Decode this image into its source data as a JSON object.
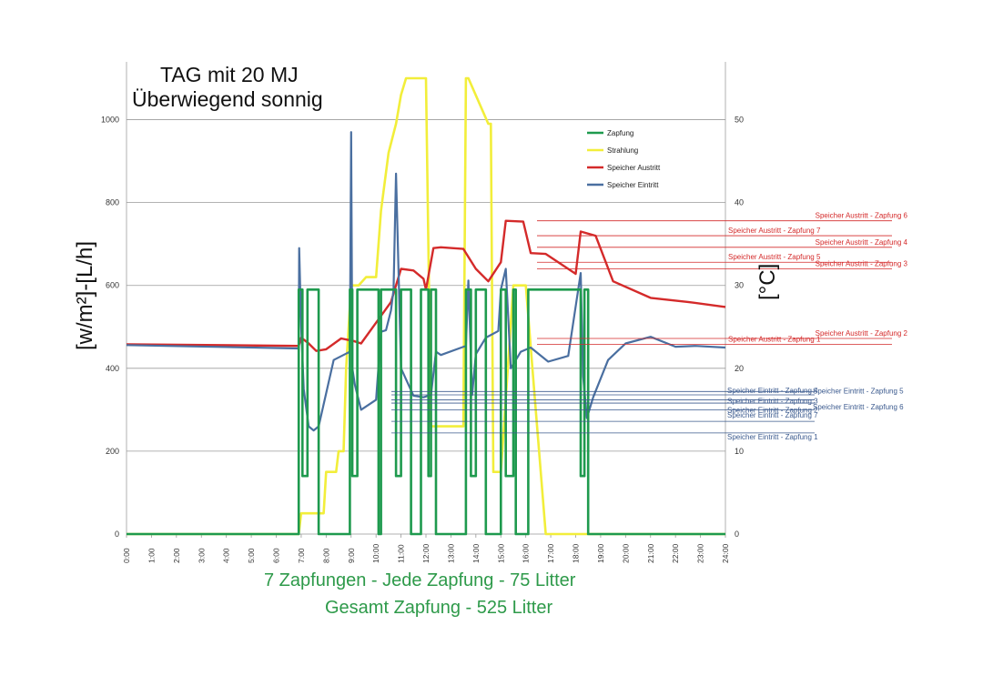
{
  "title_line1": "TAG mit 20 MJ",
  "title_line2": "Überwiegend sonnig",
  "caption_line1": "7 Zapfungen - Jede Zapfung - 75 Litter",
  "caption_line2": "Gesamt Zapfung - 525 Litter",
  "chart_data": {
    "type": "line",
    "ylabel": "[w/m²]-[L/h]",
    "y2label": "[°C]",
    "ylim": [
      0,
      1100
    ],
    "y2lim": [
      0,
      55
    ],
    "xlim": [
      0,
      24
    ],
    "x_ticks": [
      "0:00",
      "1:00",
      "2:00",
      "3:00",
      "4:00",
      "5:00",
      "6:00",
      "7:00",
      "8:00",
      "9:00",
      "10:00",
      "11:00",
      "12:00",
      "13:00",
      "14:00",
      "15:00",
      "16:00",
      "17:00",
      "18:00",
      "19:00",
      "20:00",
      "21:00",
      "22:00",
      "23:00",
      "24:00"
    ],
    "y_ticks": [
      0,
      200,
      400,
      600,
      800,
      1000
    ],
    "y2_ticks": [
      0,
      10,
      20,
      30,
      40,
      50
    ],
    "grid": true,
    "legend_position": "top-right",
    "colors": {
      "zapfung": "#1e9a4e",
      "strahlung": "#f2ee3a",
      "austritt": "#d42a2a",
      "eintritt": "#4a6fa0"
    },
    "series": [
      {
        "name": "Zapfung",
        "axis": "left",
        "x": [
          0,
          6.9,
          6.9,
          7.05,
          7.05,
          7.25,
          7.25,
          7.7,
          7.7,
          8.95,
          8.95,
          9.05,
          9.05,
          9.25,
          9.25,
          10.1,
          10.1,
          10.2,
          10.2,
          10.8,
          10.8,
          11.0,
          11.0,
          11.4,
          11.4,
          11.8,
          11.8,
          12.1,
          12.1,
          12.2,
          12.2,
          12.4,
          12.4,
          13.6,
          13.6,
          13.8,
          13.8,
          14.0,
          14.0,
          14.4,
          14.4,
          15.0,
          15.0,
          15.2,
          15.2,
          15.5,
          15.5,
          15.6,
          15.6,
          16.1,
          16.1,
          18.2,
          18.2,
          18.35,
          18.35,
          18.5,
          18.5,
          18.5,
          18.5,
          24
        ],
        "y": [
          0,
          0,
          590,
          590,
          140,
          140,
          590,
          590,
          0,
          0,
          590,
          590,
          140,
          140,
          590,
          590,
          0,
          0,
          590,
          590,
          140,
          140,
          590,
          590,
          0,
          0,
          590,
          590,
          140,
          140,
          590,
          590,
          0,
          0,
          590,
          590,
          140,
          140,
          590,
          590,
          0,
          0,
          590,
          590,
          140,
          140,
          590,
          590,
          0,
          0,
          590,
          590,
          140,
          140,
          590,
          590,
          0,
          0,
          0,
          0
        ]
      },
      {
        "name": "Strahlung",
        "axis": "left",
        "x": [
          0,
          6.9,
          7.0,
          7.9,
          8.0,
          8.4,
          8.5,
          8.7,
          8.8,
          9.0,
          9.3,
          9.6,
          10.0,
          10.2,
          10.5,
          10.8,
          11.0,
          11.2,
          12.0,
          12.2,
          13.4,
          13.5,
          13.6,
          13.7,
          14.5,
          14.6,
          14.7,
          15.0,
          15.5,
          15.7,
          16.0,
          16.4,
          16.8,
          24
        ],
        "y": [
          0,
          0,
          50,
          50,
          150,
          150,
          200,
          200,
          400,
          600,
          600,
          620,
          620,
          780,
          920,
          990,
          1060,
          1100,
          1100,
          260,
          260,
          260,
          1100,
          1100,
          990,
          990,
          150,
          150,
          600,
          600,
          600,
          300,
          0,
          0
        ]
      },
      {
        "name": "Speicher Austritt",
        "axis": "right",
        "x": [
          0,
          6.9,
          7.0,
          7.3,
          7.6,
          8.0,
          8.6,
          9.1,
          9.4,
          10.0,
          10.6,
          11.0,
          11.5,
          11.9,
          12.0,
          12.3,
          12.6,
          13.5,
          14.0,
          14.5,
          15.0,
          15.2,
          15.9,
          16.2,
          16.8,
          18.0,
          18.2,
          18.8,
          19.5,
          21.0,
          22.5,
          24
        ],
        "y": [
          22.9,
          22.7,
          23.7,
          23.0,
          22.1,
          22.3,
          23.6,
          23.3,
          23.0,
          25.5,
          28.0,
          32.0,
          31.8,
          30.8,
          29.5,
          34.5,
          34.6,
          34.4,
          32.0,
          30.5,
          32.8,
          37.8,
          37.7,
          33.9,
          33.8,
          31.4,
          36.5,
          36.0,
          30.5,
          28.5,
          28.0,
          27.4
        ]
      },
      {
        "name": "Speicher Eintritt",
        "axis": "right",
        "x": [
          0,
          6.9,
          6.92,
          7.0,
          7.1,
          7.3,
          7.5,
          7.7,
          8.3,
          8.95,
          9.0,
          9.05,
          9.15,
          9.4,
          10.0,
          10.2,
          10.4,
          10.6,
          10.7,
          10.8,
          11.0,
          11.5,
          11.9,
          12.2,
          12.4,
          12.6,
          13.6,
          13.7,
          13.85,
          14.0,
          14.4,
          14.9,
          15.0,
          15.2,
          15.4,
          15.8,
          16.2,
          16.9,
          17.7,
          18.2,
          18.3,
          18.45,
          18.7,
          19.3,
          20.0,
          21.0,
          22.0,
          22.8,
          24
        ],
        "y": [
          22.8,
          22.4,
          34.5,
          25.0,
          17.5,
          13.0,
          12.5,
          13.0,
          21.0,
          22.0,
          48.5,
          20.0,
          18.0,
          15.0,
          16.2,
          24.4,
          24.6,
          27.0,
          29.5,
          43.5,
          20.0,
          16.7,
          16.5,
          16.8,
          22.0,
          21.6,
          22.7,
          30.6,
          16.8,
          21.7,
          23.7,
          24.5,
          29.5,
          32.0,
          20.0,
          22.0,
          22.5,
          20.8,
          21.5,
          31.5,
          19.0,
          14.0,
          16.5,
          21.0,
          23.0,
          23.8,
          22.6,
          22.7,
          22.5
        ]
      }
    ],
    "annotations_austritt": [
      {
        "label": "Speicher Austritt - Zapfung 6",
        "value": 37.8,
        "align": "right"
      },
      {
        "label": "Speicher Austritt - Zapfung 7",
        "value": 36.0,
        "align": "left"
      },
      {
        "label": "Speicher Austritt - Zapfung 4",
        "value": 34.6,
        "align": "right"
      },
      {
        "label": "Speicher Austritt - Zapfung 5",
        "value": 32.8,
        "align": "left"
      },
      {
        "label": "Speicher Austritt - Zapfung 3",
        "value": 32.0,
        "align": "right"
      },
      {
        "label": "Speicher Austritt - Zapfung 2",
        "value": 23.6,
        "align": "right"
      },
      {
        "label": "Speicher Austritt - Zapfung 1",
        "value": 22.9,
        "align": "left"
      }
    ],
    "annotations_eintritt": [
      {
        "label": "Speicher Eintritt - Zapfung 4",
        "value": 16.8
      },
      {
        "label": "Speicher Eintritt - Zapfung 5",
        "value": 17.2
      },
      {
        "label": "Speicher Eintritt - Zapfung 3",
        "value": 16.2
      },
      {
        "label": "Speicher Eintritt - Zapfung 6",
        "value": 15.8
      },
      {
        "label": "Speicher Eintritt - Zapfung 2",
        "value": 15.0
      },
      {
        "label": "Speicher Eintritt - Zapfung 7",
        "value": 13.6
      },
      {
        "label": "Speicher Eintritt - Zapfung 1",
        "value": 12.2
      }
    ]
  }
}
